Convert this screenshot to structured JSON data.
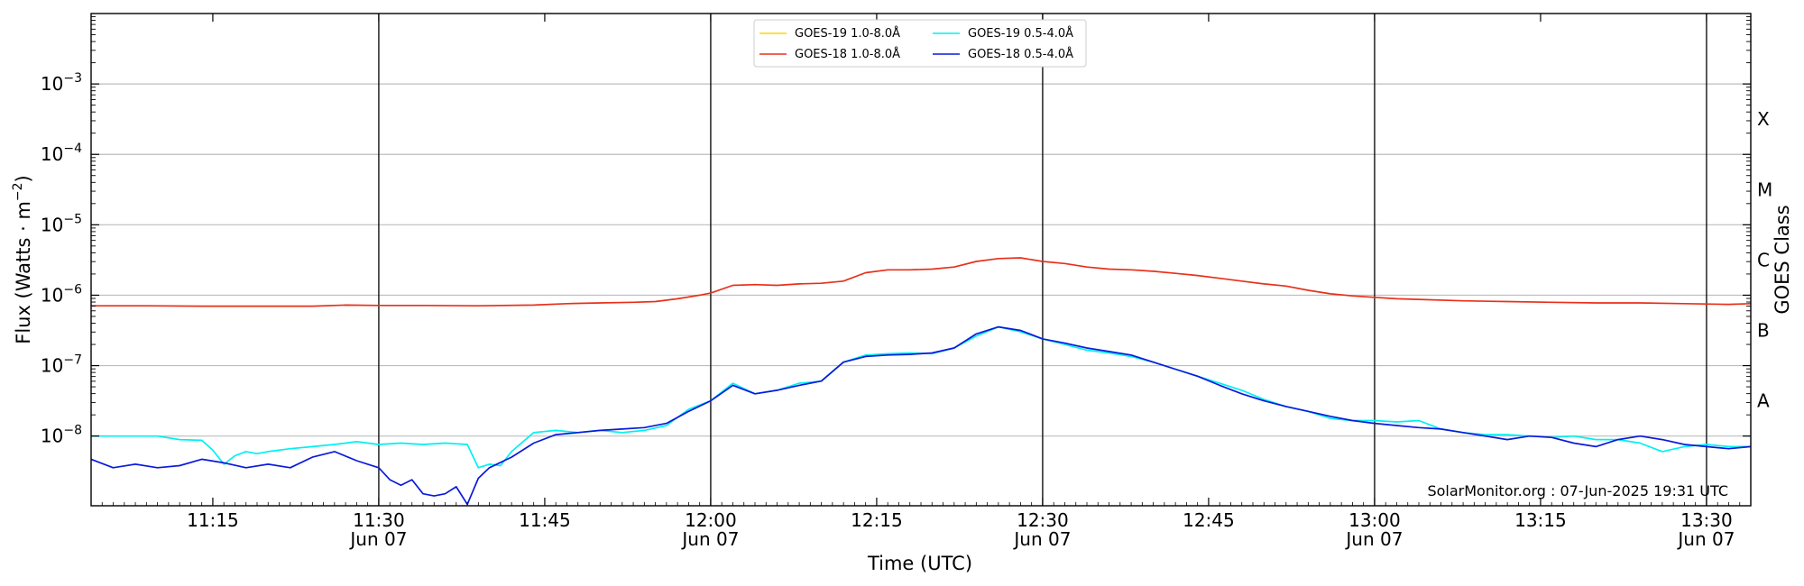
{
  "chart_data": {
    "type": "line",
    "xlabel": "Time (UTC)",
    "ylabel_main": "Flux (Watts · m",
    "ylabel_exp": "−2",
    "ylabel_close": ")",
    "y2label": "GOES Class",
    "footer": "SolarMonitor.org : 07-Jun-2025 19:31 UTC",
    "x_range_minutes": [
      0,
      150
    ],
    "x_origin": "2025-06-07 11:04 UTC",
    "ylog": true,
    "ylim_exponent": [
      -8.99,
      -2.0
    ],
    "grid": "horizontal",
    "legend_placement": "top-center",
    "y_ticks": [
      {
        "exp": -8,
        "base": "10",
        "sup": "−8"
      },
      {
        "exp": -7,
        "base": "10",
        "sup": "−7"
      },
      {
        "exp": -6,
        "base": "10",
        "sup": "−6"
      },
      {
        "exp": -5,
        "base": "10",
        "sup": "−5"
      },
      {
        "exp": -4,
        "base": "10",
        "sup": "−4"
      },
      {
        "exp": -3,
        "base": "10",
        "sup": "−3"
      }
    ],
    "class_labels": [
      {
        "label": "A",
        "exp": -7.5
      },
      {
        "label": "B",
        "exp": -6.5
      },
      {
        "label": "C",
        "exp": -5.5
      },
      {
        "label": "M",
        "exp": -4.5
      },
      {
        "label": "X",
        "exp": -3.5
      }
    ],
    "x_ticks": [
      {
        "minute": 11,
        "time": "11:15",
        "date": ""
      },
      {
        "minute": 26,
        "time": "11:30",
        "date": "Jun 07"
      },
      {
        "minute": 41,
        "time": "11:45",
        "date": ""
      },
      {
        "minute": 56,
        "time": "12:00",
        "date": "Jun 07"
      },
      {
        "minute": 71,
        "time": "12:15",
        "date": ""
      },
      {
        "minute": 86,
        "time": "12:30",
        "date": "Jun 07"
      },
      {
        "minute": 101,
        "time": "12:45",
        "date": ""
      },
      {
        "minute": 116,
        "time": "13:00",
        "date": "Jun 07"
      },
      {
        "minute": 131,
        "time": "13:15",
        "date": ""
      },
      {
        "minute": 146,
        "time": "13:30",
        "date": "Jun 07"
      }
    ],
    "vlines_minutes": [
      26,
      56,
      86,
      116,
      146
    ],
    "series": [
      {
        "name": "GOES-19 1.0-8.0Å",
        "color": "#ffd700",
        "points": []
      },
      {
        "name": "GOES-18 1.0-8.0Å",
        "color": "#e8301a",
        "points": [
          [
            0,
            -6.15
          ],
          [
            5,
            -6.15
          ],
          [
            10,
            -6.155
          ],
          [
            15,
            -6.155
          ],
          [
            20,
            -6.155
          ],
          [
            23,
            -6.14
          ],
          [
            26,
            -6.145
          ],
          [
            30,
            -6.145
          ],
          [
            35,
            -6.15
          ],
          [
            40,
            -6.14
          ],
          [
            43,
            -6.12
          ],
          [
            46,
            -6.11
          ],
          [
            49,
            -6.1
          ],
          [
            51,
            -6.09
          ],
          [
            53,
            -6.05
          ],
          [
            55,
            -6.0
          ],
          [
            56,
            -5.97
          ],
          [
            58,
            -5.86
          ],
          [
            60,
            -5.85
          ],
          [
            62,
            -5.86
          ],
          [
            64,
            -5.84
          ],
          [
            66,
            -5.83
          ],
          [
            68,
            -5.8
          ],
          [
            70,
            -5.68
          ],
          [
            72,
            -5.64
          ],
          [
            74,
            -5.64
          ],
          [
            76,
            -5.63
          ],
          [
            78,
            -5.6
          ],
          [
            80,
            -5.52
          ],
          [
            82,
            -5.48
          ],
          [
            84,
            -5.47
          ],
          [
            86,
            -5.52
          ],
          [
            88,
            -5.55
          ],
          [
            90,
            -5.6
          ],
          [
            92,
            -5.63
          ],
          [
            94,
            -5.64
          ],
          [
            96,
            -5.66
          ],
          [
            98,
            -5.69
          ],
          [
            100,
            -5.72
          ],
          [
            102,
            -5.76
          ],
          [
            104,
            -5.8
          ],
          [
            106,
            -5.84
          ],
          [
            108,
            -5.87
          ],
          [
            110,
            -5.93
          ],
          [
            112,
            -5.98
          ],
          [
            114,
            -6.01
          ],
          [
            116,
            -6.03
          ],
          [
            118,
            -6.05
          ],
          [
            120,
            -6.06
          ],
          [
            124,
            -6.08
          ],
          [
            128,
            -6.09
          ],
          [
            132,
            -6.1
          ],
          [
            136,
            -6.11
          ],
          [
            140,
            -6.11
          ],
          [
            144,
            -6.12
          ],
          [
            148,
            -6.13
          ],
          [
            150,
            -6.12
          ]
        ]
      },
      {
        "name": "GOES-19 0.5-4.0Å",
        "color": "#00f0f0",
        "points": [
          [
            0,
            -8.0
          ],
          [
            2,
            -8.0
          ],
          [
            4,
            -8.0
          ],
          [
            6,
            -8.0
          ],
          [
            8,
            -8.05
          ],
          [
            10,
            -8.06
          ],
          [
            11,
            -8.2
          ],
          [
            12,
            -8.4
          ],
          [
            13,
            -8.28
          ],
          [
            14,
            -8.22
          ],
          [
            15,
            -8.25
          ],
          [
            16,
            -8.22
          ],
          [
            18,
            -8.18
          ],
          [
            20,
            -8.15
          ],
          [
            22,
            -8.12
          ],
          [
            24,
            -8.08
          ],
          [
            26,
            -8.12
          ],
          [
            28,
            -8.1
          ],
          [
            30,
            -8.12
          ],
          [
            32,
            -8.1
          ],
          [
            34,
            -8.12
          ],
          [
            35,
            -8.45
          ],
          [
            36,
            -8.4
          ],
          [
            37,
            -8.42
          ],
          [
            38,
            -8.22
          ],
          [
            40,
            -7.95
          ],
          [
            42,
            -7.92
          ],
          [
            44,
            -7.95
          ],
          [
            46,
            -7.92
          ],
          [
            48,
            -7.95
          ],
          [
            50,
            -7.92
          ],
          [
            52,
            -7.85
          ],
          [
            54,
            -7.62
          ],
          [
            56,
            -7.5
          ],
          [
            58,
            -7.25
          ],
          [
            60,
            -7.4
          ],
          [
            62,
            -7.35
          ],
          [
            64,
            -7.25
          ],
          [
            66,
            -7.22
          ],
          [
            68,
            -6.95
          ],
          [
            70,
            -6.85
          ],
          [
            72,
            -6.83
          ],
          [
            74,
            -6.82
          ],
          [
            76,
            -6.83
          ],
          [
            78,
            -6.75
          ],
          [
            80,
            -6.58
          ],
          [
            82,
            -6.45
          ],
          [
            84,
            -6.52
          ],
          [
            86,
            -6.62
          ],
          [
            88,
            -6.7
          ],
          [
            90,
            -6.78
          ],
          [
            92,
            -6.82
          ],
          [
            94,
            -6.87
          ],
          [
            96,
            -6.95
          ],
          [
            98,
            -7.05
          ],
          [
            100,
            -7.15
          ],
          [
            102,
            -7.25
          ],
          [
            104,
            -7.35
          ],
          [
            106,
            -7.48
          ],
          [
            108,
            -7.58
          ],
          [
            110,
            -7.65
          ],
          [
            112,
            -7.75
          ],
          [
            114,
            -7.78
          ],
          [
            116,
            -7.78
          ],
          [
            118,
            -7.8
          ],
          [
            120,
            -7.78
          ],
          [
            122,
            -7.9
          ],
          [
            124,
            -7.95
          ],
          [
            126,
            -7.98
          ],
          [
            128,
            -7.98
          ],
          [
            130,
            -8.0
          ],
          [
            132,
            -8.02
          ],
          [
            134,
            -8.0
          ],
          [
            136,
            -8.05
          ],
          [
            138,
            -8.05
          ],
          [
            140,
            -8.1
          ],
          [
            142,
            -8.22
          ],
          [
            144,
            -8.15
          ],
          [
            146,
            -8.12
          ],
          [
            148,
            -8.15
          ],
          [
            150,
            -8.15
          ]
        ]
      },
      {
        "name": "GOES-18 0.5-4.0Å",
        "color": "#0a1adb",
        "points": [
          [
            0,
            -8.33
          ],
          [
            2,
            -8.45
          ],
          [
            4,
            -8.4
          ],
          [
            6,
            -8.45
          ],
          [
            8,
            -8.42
          ],
          [
            10,
            -8.33
          ],
          [
            12,
            -8.38
          ],
          [
            14,
            -8.45
          ],
          [
            16,
            -8.4
          ],
          [
            18,
            -8.45
          ],
          [
            20,
            -8.3
          ],
          [
            22,
            -8.22
          ],
          [
            24,
            -8.35
          ],
          [
            25,
            -8.4
          ],
          [
            26,
            -8.45
          ],
          [
            27,
            -8.62
          ],
          [
            28,
            -8.7
          ],
          [
            29,
            -8.62
          ],
          [
            30,
            -8.82
          ],
          [
            31,
            -8.85
          ],
          [
            32,
            -8.82
          ],
          [
            33,
            -8.72
          ],
          [
            34,
            -8.97
          ],
          [
            35,
            -8.6
          ],
          [
            36,
            -8.45
          ],
          [
            38,
            -8.3
          ],
          [
            40,
            -8.1
          ],
          [
            42,
            -7.98
          ],
          [
            44,
            -7.95
          ],
          [
            46,
            -7.92
          ],
          [
            48,
            -7.9
          ],
          [
            50,
            -7.88
          ],
          [
            52,
            -7.82
          ],
          [
            54,
            -7.65
          ],
          [
            56,
            -7.5
          ],
          [
            58,
            -7.28
          ],
          [
            60,
            -7.4
          ],
          [
            62,
            -7.35
          ],
          [
            64,
            -7.28
          ],
          [
            66,
            -7.22
          ],
          [
            68,
            -6.95
          ],
          [
            70,
            -6.87
          ],
          [
            72,
            -6.85
          ],
          [
            74,
            -6.84
          ],
          [
            76,
            -6.82
          ],
          [
            78,
            -6.75
          ],
          [
            80,
            -6.55
          ],
          [
            82,
            -6.45
          ],
          [
            84,
            -6.5
          ],
          [
            86,
            -6.62
          ],
          [
            88,
            -6.68
          ],
          [
            90,
            -6.75
          ],
          [
            92,
            -6.8
          ],
          [
            94,
            -6.85
          ],
          [
            96,
            -6.95
          ],
          [
            98,
            -7.05
          ],
          [
            100,
            -7.15
          ],
          [
            102,
            -7.28
          ],
          [
            104,
            -7.4
          ],
          [
            106,
            -7.5
          ],
          [
            108,
            -7.58
          ],
          [
            110,
            -7.65
          ],
          [
            112,
            -7.72
          ],
          [
            114,
            -7.78
          ],
          [
            116,
            -7.82
          ],
          [
            118,
            -7.85
          ],
          [
            120,
            -7.88
          ],
          [
            122,
            -7.9
          ],
          [
            124,
            -7.95
          ],
          [
            126,
            -8.0
          ],
          [
            128,
            -8.05
          ],
          [
            130,
            -8.0
          ],
          [
            132,
            -8.02
          ],
          [
            134,
            -8.1
          ],
          [
            136,
            -8.15
          ],
          [
            138,
            -8.05
          ],
          [
            140,
            -8.0
          ],
          [
            142,
            -8.05
          ],
          [
            144,
            -8.12
          ],
          [
            146,
            -8.15
          ],
          [
            148,
            -8.18
          ],
          [
            150,
            -8.15
          ]
        ]
      }
    ]
  }
}
